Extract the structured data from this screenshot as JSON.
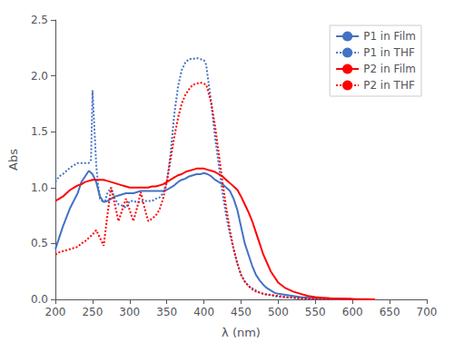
{
  "chart_data": {
    "type": "line",
    "xlabel": "λ (nm)",
    "ylabel": "Abs",
    "xlim": [
      200,
      700
    ],
    "ylim": [
      0,
      2.5
    ],
    "xticks": [
      200,
      250,
      300,
      350,
      400,
      450,
      500,
      550,
      600,
      650,
      700
    ],
    "yticks": [
      {
        "value": 0,
        "label": "0.0"
      },
      0.5,
      {
        "value": 1.0,
        "label": "1.0"
      },
      1.5,
      {
        "value": 2.0,
        "label": "2.0"
      },
      2.5
    ],
    "grid": false,
    "legend": "upper right",
    "series": [
      {
        "name": "P1 in Film",
        "color": "#4472C4",
        "line_style": "solid",
        "x": [
          200,
          210,
          220,
          230,
          235,
          240,
          245,
          250,
          255,
          260,
          265,
          270,
          275,
          280,
          285,
          290,
          295,
          300,
          305,
          310,
          315,
          320,
          325,
          330,
          335,
          340,
          345,
          350,
          355,
          360,
          365,
          370,
          375,
          380,
          385,
          390,
          395,
          400,
          405,
          410,
          415,
          420,
          425,
          430,
          435,
          440,
          445,
          450,
          455,
          460,
          465,
          470,
          475,
          480,
          485,
          490,
          495,
          500,
          510,
          520,
          530,
          540,
          550,
          560,
          570,
          580,
          590,
          600,
          610,
          620,
          630
        ],
        "values": [
          0.45,
          0.65,
          0.82,
          0.95,
          1.05,
          1.1,
          1.15,
          1.12,
          1.05,
          0.92,
          0.87,
          0.88,
          0.9,
          0.92,
          0.93,
          0.94,
          0.95,
          0.95,
          0.95,
          0.96,
          0.97,
          0.97,
          0.97,
          0.97,
          0.97,
          0.97,
          0.97,
          0.98,
          1.0,
          1.02,
          1.05,
          1.07,
          1.08,
          1.1,
          1.11,
          1.12,
          1.12,
          1.13,
          1.12,
          1.1,
          1.07,
          1.05,
          1.03,
          1.0,
          0.97,
          0.9,
          0.8,
          0.65,
          0.5,
          0.4,
          0.3,
          0.22,
          0.17,
          0.13,
          0.1,
          0.08,
          0.06,
          0.05,
          0.04,
          0.03,
          0.02,
          0.015,
          0.01,
          0.01,
          0.008,
          0.005,
          0.003,
          0.002,
          0.001,
          0.001,
          0.0
        ]
      },
      {
        "name": "P1 in THF",
        "color": "#4472C4",
        "line_style": "dotted",
        "x": [
          200,
          205,
          210,
          215,
          220,
          225,
          230,
          235,
          240,
          245,
          248,
          250,
          252,
          255,
          258,
          260,
          263,
          265,
          267,
          270,
          275,
          280,
          285,
          290,
          295,
          300,
          305,
          310,
          315,
          320,
          325,
          330,
          335,
          340,
          345,
          350,
          355,
          360,
          365,
          370,
          375,
          380,
          385,
          390,
          395,
          400,
          403,
          405,
          410,
          415,
          420,
          425,
          430,
          435,
          440,
          445,
          450,
          455,
          460,
          465,
          470,
          475,
          480,
          485,
          490,
          495,
          500,
          510,
          520,
          530,
          540,
          550,
          560,
          570,
          580,
          590,
          600,
          610,
          620,
          630
        ],
        "values": [
          1.05,
          1.1,
          1.12,
          1.15,
          1.18,
          1.2,
          1.22,
          1.22,
          1.22,
          1.22,
          1.25,
          1.87,
          1.6,
          1.2,
          1.0,
          0.9,
          0.88,
          0.88,
          0.88,
          0.95,
          1.0,
          0.9,
          0.85,
          0.84,
          0.82,
          0.88,
          0.88,
          0.87,
          0.87,
          0.88,
          0.88,
          0.88,
          0.9,
          0.91,
          0.95,
          1.05,
          1.3,
          1.65,
          1.9,
          2.05,
          2.12,
          2.15,
          2.15,
          2.16,
          2.15,
          2.14,
          2.1,
          2.0,
          1.75,
          1.45,
          1.2,
          0.95,
          0.75,
          0.58,
          0.45,
          0.32,
          0.22,
          0.16,
          0.12,
          0.1,
          0.08,
          0.06,
          0.05,
          0.04,
          0.04,
          0.03,
          0.025,
          0.02,
          0.015,
          0.01,
          0.008,
          0.006,
          0.005,
          0.004,
          0.003,
          0.002,
          0.001,
          0.001,
          0.0,
          0.0
        ]
      },
      {
        "name": "P2 in Film",
        "color": "#FF0000",
        "line_style": "solid",
        "x": [
          200,
          205,
          210,
          215,
          220,
          225,
          230,
          235,
          240,
          245,
          250,
          255,
          260,
          265,
          270,
          275,
          280,
          285,
          290,
          295,
          300,
          305,
          310,
          315,
          320,
          325,
          330,
          335,
          340,
          345,
          350,
          355,
          360,
          365,
          370,
          375,
          380,
          385,
          390,
          395,
          400,
          405,
          410,
          415,
          420,
          425,
          430,
          435,
          440,
          445,
          450,
          455,
          460,
          465,
          470,
          475,
          480,
          490,
          500,
          510,
          520,
          530,
          540,
          550,
          560,
          570,
          580,
          590,
          600,
          610,
          620,
          630
        ],
        "values": [
          0.88,
          0.9,
          0.92,
          0.95,
          0.98,
          1.0,
          1.02,
          1.03,
          1.05,
          1.06,
          1.07,
          1.07,
          1.07,
          1.07,
          1.06,
          1.05,
          1.04,
          1.03,
          1.02,
          1.01,
          1.0,
          1.0,
          1.0,
          1.0,
          1.0,
          1.0,
          1.01,
          1.01,
          1.02,
          1.03,
          1.05,
          1.07,
          1.09,
          1.11,
          1.12,
          1.14,
          1.15,
          1.16,
          1.17,
          1.17,
          1.17,
          1.16,
          1.15,
          1.14,
          1.12,
          1.1,
          1.07,
          1.04,
          1.01,
          0.98,
          0.92,
          0.85,
          0.78,
          0.7,
          0.6,
          0.5,
          0.4,
          0.25,
          0.15,
          0.1,
          0.07,
          0.05,
          0.03,
          0.02,
          0.015,
          0.01,
          0.008,
          0.006,
          0.004,
          0.003,
          0.002,
          0.001
        ]
      },
      {
        "name": "P2 in THF",
        "color": "#FF0000",
        "line_style": "dotted",
        "x": [
          200,
          205,
          210,
          215,
          220,
          225,
          230,
          235,
          240,
          245,
          250,
          255,
          260,
          265,
          270,
          275,
          280,
          285,
          290,
          295,
          300,
          305,
          310,
          315,
          320,
          325,
          330,
          335,
          340,
          345,
          350,
          355,
          360,
          365,
          370,
          375,
          380,
          385,
          390,
          395,
          400,
          403,
          405,
          410,
          415,
          420,
          425,
          430,
          435,
          440,
          445,
          450,
          455,
          460,
          465,
          470,
          480,
          490,
          500,
          510,
          520,
          530,
          540,
          550,
          560,
          570,
          580,
          590,
          600,
          610,
          620,
          630
        ],
        "values": [
          0.4,
          0.42,
          0.43,
          0.44,
          0.45,
          0.46,
          0.47,
          0.5,
          0.52,
          0.55,
          0.58,
          0.62,
          0.55,
          0.48,
          0.75,
          1.0,
          0.85,
          0.7,
          0.8,
          0.9,
          0.8,
          0.7,
          0.82,
          0.96,
          0.82,
          0.7,
          0.72,
          0.75,
          0.8,
          0.9,
          1.05,
          1.25,
          1.45,
          1.62,
          1.75,
          1.83,
          1.88,
          1.92,
          1.93,
          1.94,
          1.93,
          1.92,
          1.88,
          1.75,
          1.55,
          1.3,
          1.05,
          0.82,
          0.62,
          0.45,
          0.32,
          0.22,
          0.16,
          0.12,
          0.09,
          0.07,
          0.05,
          0.04,
          0.03,
          0.02,
          0.015,
          0.01,
          0.008,
          0.006,
          0.005,
          0.004,
          0.003,
          0.002,
          0.001,
          0.001,
          0.0,
          0.0
        ]
      }
    ]
  }
}
